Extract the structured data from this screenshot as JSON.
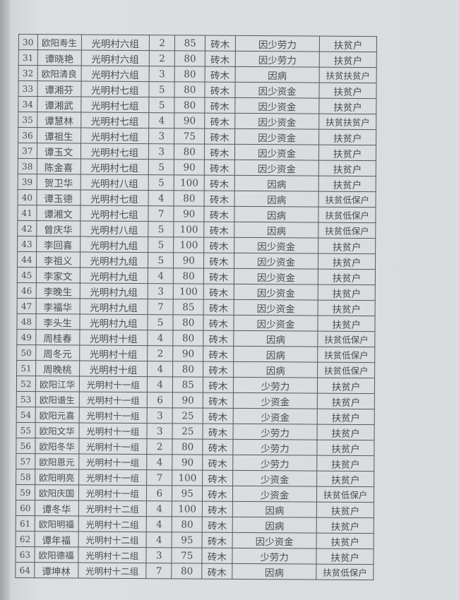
{
  "rows": [
    [
      "30",
      "欧阳寿生",
      "光明村六组",
      "2",
      "85",
      "砖木",
      "因少劳力",
      "扶贫户"
    ],
    [
      "31",
      "谭晓艳",
      "光明村六组",
      "2",
      "80",
      "砖木",
      "因少劳力",
      "扶贫户"
    ],
    [
      "32",
      "欧阳清良",
      "光明村六组",
      "3",
      "80",
      "砖木",
      "因病",
      "扶贫扶贫户"
    ],
    [
      "33",
      "谭湘芬",
      "光明村七组",
      "5",
      "80",
      "砖木",
      "因少资金",
      "扶贫户"
    ],
    [
      "34",
      "谭湘武",
      "光明村七组",
      "5",
      "80",
      "砖木",
      "因少资金",
      "扶贫户"
    ],
    [
      "35",
      "谭慧林",
      "光明村七组",
      "4",
      "90",
      "砖木",
      "因少资金",
      "扶贫扶贫户"
    ],
    [
      "36",
      "谭祖生",
      "光明村七组",
      "3",
      "75",
      "砖木",
      "因少资金",
      "扶贫户"
    ],
    [
      "37",
      "谭玉文",
      "光明村七组",
      "3",
      "80",
      "砖木",
      "因少资金",
      "扶贫户"
    ],
    [
      "38",
      "陈金喜",
      "光明村七组",
      "5",
      "90",
      "砖木",
      "因少资金",
      "扶贫户"
    ],
    [
      "39",
      "贺卫华",
      "光明村八组",
      "5",
      "100",
      "砖木",
      "因病",
      "扶贫户"
    ],
    [
      "40",
      "谭玉德",
      "光明村七组",
      "4",
      "80",
      "砖木",
      "因病",
      "扶贫低保户"
    ],
    [
      "41",
      "谭湘文",
      "光明村七组",
      "7",
      "90",
      "砖木",
      "因病",
      "扶贫低保户"
    ],
    [
      "42",
      "曾庆华",
      "光明村八组",
      "5",
      "100",
      "砖木",
      "因病",
      "扶贫低保户"
    ],
    [
      "43",
      "李回喜",
      "光明村九组",
      "5",
      "100",
      "砖木",
      "因少资金",
      "扶贫户"
    ],
    [
      "44",
      "李祖义",
      "光明村九组",
      "5",
      "90",
      "砖木",
      "因少资金",
      "扶贫户"
    ],
    [
      "45",
      "李家文",
      "光明村九组",
      "4",
      "80",
      "砖木",
      "因少资金",
      "扶贫户"
    ],
    [
      "46",
      "李晚生",
      "光明村九组",
      "3",
      "100",
      "砖木",
      "因少资金",
      "扶贫户"
    ],
    [
      "47",
      "李福华",
      "光明村九组",
      "7",
      "85",
      "砖木",
      "因少资金",
      "扶贫户"
    ],
    [
      "48",
      "李头生",
      "光明村九组",
      "5",
      "80",
      "砖木",
      "因少资金",
      "扶贫户"
    ],
    [
      "49",
      "周桂春",
      "光明村十组",
      "4",
      "80",
      "砖木",
      "因病",
      "扶贫低保户"
    ],
    [
      "50",
      "周冬元",
      "光明村十组",
      "2",
      "90",
      "砖木",
      "因病",
      "扶贫低保户"
    ],
    [
      "51",
      "周晚桃",
      "光明村十组",
      "4",
      "80",
      "砖木",
      "因病",
      "扶贫低保户"
    ],
    [
      "52",
      "欧阳江华",
      "光明村十一组",
      "4",
      "85",
      "砖木",
      "少劳力",
      "扶贫户"
    ],
    [
      "53",
      "欧阳谱生",
      "光明村十一组",
      "6",
      "90",
      "砖木",
      "少资金",
      "扶贫户"
    ],
    [
      "54",
      "欧阳元喜",
      "光明村十一组",
      "3",
      "25",
      "砖木",
      "少资金",
      "扶贫户"
    ],
    [
      "55",
      "欧阳文华",
      "光明村十一组",
      "3",
      "25",
      "砖木",
      "少劳力",
      "扶贫户"
    ],
    [
      "56",
      "欧阳冬华",
      "光明村十一组",
      "2",
      "80",
      "砖木",
      "少劳力",
      "扶贫户"
    ],
    [
      "57",
      "欧阳恩元",
      "光明村十一组",
      "4",
      "90",
      "砖木",
      "少劳力",
      "扶贫户"
    ],
    [
      "58",
      "欧阳明亮",
      "光明村十一组",
      "7",
      "100",
      "砖木",
      "少资金",
      "扶贫户"
    ],
    [
      "59",
      "欧阳庆国",
      "光明村十一组",
      "6",
      "95",
      "砖木",
      "少资金",
      "扶贫低保户"
    ],
    [
      "60",
      "谭冬华",
      "光明村十二组",
      "4",
      "100",
      "砖木",
      "因病",
      "扶贫户"
    ],
    [
      "61",
      "欧阳明福",
      "光明村十二组",
      "4",
      "80",
      "砖木",
      "因病",
      "扶贫户"
    ],
    [
      "62",
      "谭年福",
      "光明村十二组",
      "4",
      "95",
      "砖木",
      "因少资金",
      "扶贫户"
    ],
    [
      "63",
      "欧阳德福",
      "光明村十二组",
      "3",
      "75",
      "砖木",
      "少劳力",
      "扶贫户"
    ],
    [
      "64",
      "谭坤林",
      "光明村十二组",
      "7",
      "80",
      "砖木",
      "因病",
      "扶贫低保户"
    ]
  ]
}
